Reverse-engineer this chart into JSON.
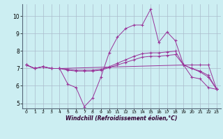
{
  "xlabel": "Windchill (Refroidissement éolien,°C)",
  "background_color": "#cceef2",
  "line_color": "#993399",
  "grid_color": "#aabbcc",
  "xlim": [
    -0.5,
    23.5
  ],
  "ylim": [
    4.7,
    10.7
  ],
  "yticks": [
    5,
    6,
    7,
    8,
    9,
    10
  ],
  "xticks": [
    0,
    1,
    2,
    3,
    4,
    5,
    6,
    7,
    8,
    9,
    10,
    11,
    12,
    13,
    14,
    15,
    16,
    17,
    18,
    19,
    20,
    21,
    22,
    23
  ],
  "line1_x": [
    0,
    1,
    2,
    3,
    4,
    5,
    6,
    7,
    8,
    9,
    10,
    11,
    12,
    13,
    14,
    15,
    16,
    17,
    18,
    19,
    20,
    21,
    22,
    23
  ],
  "line1_y": [
    7.2,
    7.0,
    7.1,
    7.0,
    7.0,
    6.1,
    5.9,
    4.8,
    5.3,
    6.5,
    7.9,
    8.8,
    9.3,
    9.5,
    9.5,
    10.4,
    8.5,
    9.1,
    8.6,
    7.2,
    6.5,
    6.4,
    5.9,
    5.8
  ],
  "line2_x": [
    0,
    1,
    2,
    3,
    4,
    5,
    6,
    7,
    8,
    9,
    10,
    11,
    12,
    13,
    14,
    15,
    16,
    17,
    18,
    19,
    20,
    21,
    22,
    23
  ],
  "line2_y": [
    7.2,
    7.0,
    7.1,
    7.0,
    7.0,
    6.9,
    6.85,
    6.85,
    6.85,
    6.9,
    7.05,
    7.2,
    7.35,
    7.5,
    7.65,
    7.7,
    7.7,
    7.75,
    7.8,
    7.2,
    7.0,
    6.8,
    6.5,
    5.8
  ],
  "line3_x": [
    0,
    1,
    2,
    3,
    4,
    5,
    6,
    7,
    8,
    9,
    10,
    11,
    12,
    13,
    14,
    15,
    16,
    17,
    18,
    19,
    20,
    21,
    22,
    23
  ],
  "line3_y": [
    7.2,
    7.0,
    7.1,
    7.0,
    7.0,
    6.95,
    6.9,
    6.9,
    6.9,
    6.95,
    7.1,
    7.3,
    7.5,
    7.7,
    7.85,
    7.9,
    7.9,
    7.95,
    8.0,
    7.2,
    7.0,
    6.85,
    6.6,
    5.8
  ],
  "line4_x": [
    0,
    1,
    2,
    3,
    4,
    19,
    20,
    21,
    22,
    23
  ],
  "line4_y": [
    7.2,
    7.0,
    7.1,
    7.0,
    7.0,
    7.2,
    7.2,
    7.2,
    7.2,
    5.8
  ]
}
